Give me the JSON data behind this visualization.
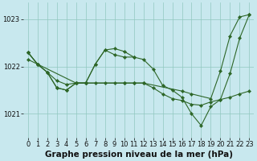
{
  "background_color": "#c8e8ee",
  "grid_color": "#90c8c0",
  "line_color": "#2d6627",
  "marker_color": "#2d6627",
  "title": "Graphe pression niveau de la mer (hPa)",
  "title_fontsize": 7.5,
  "tick_fontsize": 6.0,
  "xlim": [
    -0.5,
    23.5
  ],
  "ylim": [
    1020.5,
    1023.35
  ],
  "yticks": [
    1021,
    1022,
    1023
  ],
  "xticks": [
    0,
    1,
    2,
    3,
    4,
    5,
    6,
    7,
    8,
    9,
    10,
    11,
    12,
    13,
    14,
    15,
    16,
    17,
    18,
    19,
    20,
    21,
    22,
    23
  ],
  "series": [
    {
      "x": [
        0,
        1,
        5,
        6,
        10,
        11,
        12,
        16,
        17,
        19,
        20,
        21,
        22,
        23
      ],
      "y": [
        1022.3,
        1022.05,
        1021.65,
        1021.65,
        1021.65,
        1021.65,
        1021.65,
        1021.48,
        1021.42,
        1021.32,
        1021.9,
        1022.65,
        1023.05,
        1023.1
      ]
    },
    {
      "x": [
        0,
        1,
        2,
        3,
        4,
        5,
        6,
        7,
        8,
        9,
        10,
        11,
        12,
        13,
        14,
        15,
        16,
        17,
        18,
        19,
        20,
        21,
        22,
        23
      ],
      "y": [
        1022.3,
        1022.05,
        1021.88,
        1021.55,
        1021.5,
        1021.65,
        1021.65,
        1022.05,
        1022.35,
        1022.25,
        1022.2,
        1022.2,
        1022.15,
        1021.95,
        1021.6,
        1021.5,
        1021.35,
        1021.0,
        1020.75,
        1021.15,
        1021.3,
        1021.85,
        1022.6,
        1023.1
      ]
    },
    {
      "x": [
        0,
        1,
        2,
        3,
        4,
        5,
        6,
        7,
        8,
        9,
        10,
        11,
        12,
        13,
        14,
        15,
        16,
        17,
        18,
        19,
        20,
        21,
        22,
        23
      ],
      "y": [
        1022.15,
        1022.05,
        1021.88,
        1021.7,
        1021.62,
        1021.65,
        1021.65,
        1021.65,
        1021.65,
        1021.65,
        1021.65,
        1021.65,
        1021.65,
        1021.55,
        1021.42,
        1021.32,
        1021.28,
        1021.2,
        1021.18,
        1021.25,
        1021.3,
        1021.35,
        1021.42,
        1021.48
      ]
    },
    {
      "x": [
        0,
        1,
        2,
        3,
        4,
        5,
        6,
        7,
        8,
        9,
        10,
        11
      ],
      "y": [
        1022.3,
        1022.05,
        1021.88,
        1021.55,
        1021.5,
        1021.65,
        1021.65,
        1022.05,
        1022.35,
        1022.38,
        1022.32,
        1022.2
      ]
    }
  ]
}
